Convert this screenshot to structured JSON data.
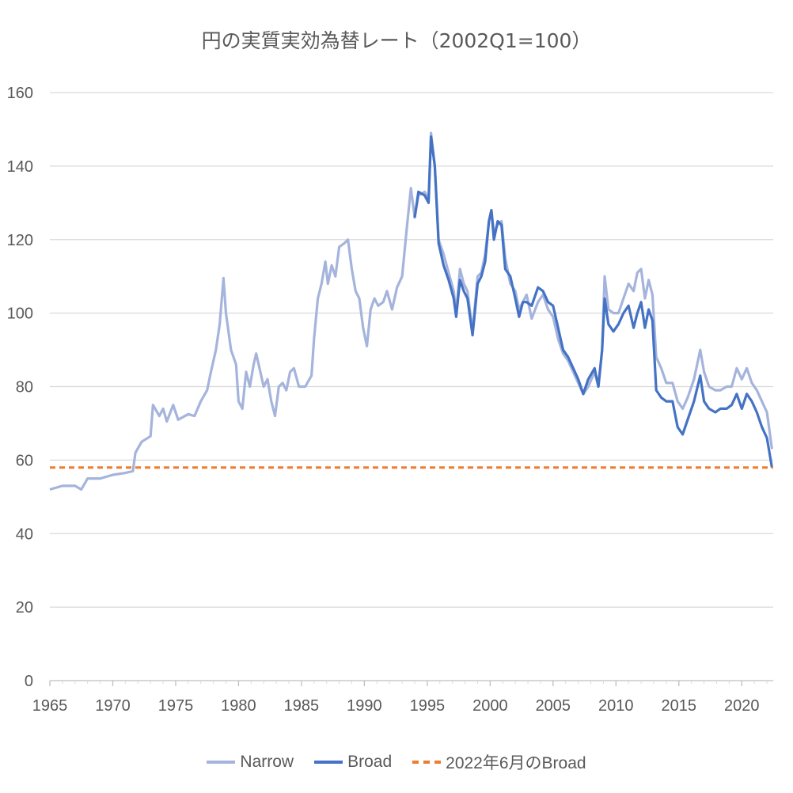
{
  "chart_data": {
    "type": "line",
    "title": "円の実質実効為替レート（2002Q1=100）",
    "xlabel": "",
    "ylabel": "",
    "xlim": [
      1965,
      2022.5
    ],
    "ylim": [
      0,
      160
    ],
    "xticks": [
      "1965",
      "1970",
      "1975",
      "1980",
      "1985",
      "1990",
      "1995",
      "2000",
      "2005",
      "2010",
      "2015",
      "2020"
    ],
    "yticks": [
      "0",
      "20",
      "40",
      "60",
      "80",
      "100",
      "120",
      "140",
      "160"
    ],
    "grid": "horizontal",
    "legend_position": "bottom",
    "series": [
      {
        "name": "Narrow",
        "color": "#a5b4dc",
        "points": [
          [
            1965,
            52
          ],
          [
            1966,
            53
          ],
          [
            1967,
            53
          ],
          [
            1967.5,
            52
          ],
          [
            1968,
            55
          ],
          [
            1969,
            55
          ],
          [
            1970,
            56
          ],
          [
            1971,
            56.5
          ],
          [
            1971.6,
            57
          ],
          [
            1971.8,
            62
          ],
          [
            1972.3,
            65
          ],
          [
            1973,
            66.5
          ],
          [
            1973.2,
            75
          ],
          [
            1973.7,
            72
          ],
          [
            1974,
            74
          ],
          [
            1974.3,
            70.5
          ],
          [
            1974.8,
            75
          ],
          [
            1975.2,
            71
          ],
          [
            1976,
            72.5
          ],
          [
            1976.5,
            72
          ],
          [
            1977,
            76
          ],
          [
            1977.5,
            79
          ],
          [
            1977.8,
            84
          ],
          [
            1978.2,
            90
          ],
          [
            1978.5,
            97
          ],
          [
            1978.8,
            109.5
          ],
          [
            1979,
            100
          ],
          [
            1979.4,
            90
          ],
          [
            1979.8,
            86
          ],
          [
            1980,
            76
          ],
          [
            1980.3,
            74
          ],
          [
            1980.6,
            84
          ],
          [
            1980.9,
            80
          ],
          [
            1981.2,
            86
          ],
          [
            1981.4,
            89
          ],
          [
            1981.8,
            83
          ],
          [
            1982,
            80
          ],
          [
            1982.3,
            82
          ],
          [
            1982.6,
            76
          ],
          [
            1982.9,
            72
          ],
          [
            1983.2,
            80
          ],
          [
            1983.5,
            81
          ],
          [
            1983.8,
            79
          ],
          [
            1984.1,
            84
          ],
          [
            1984.4,
            85
          ],
          [
            1984.8,
            80
          ],
          [
            1985.3,
            80
          ],
          [
            1985.8,
            83
          ],
          [
            1986,
            93
          ],
          [
            1986.3,
            104
          ],
          [
            1986.6,
            108
          ],
          [
            1986.9,
            114
          ],
          [
            1987.1,
            108
          ],
          [
            1987.4,
            113
          ],
          [
            1987.7,
            110
          ],
          [
            1988,
            118
          ],
          [
            1988.4,
            119
          ],
          [
            1988.7,
            120
          ],
          [
            1989,
            112
          ],
          [
            1989.3,
            106
          ],
          [
            1989.6,
            104
          ],
          [
            1989.9,
            96
          ],
          [
            1990.2,
            91
          ],
          [
            1990.5,
            101
          ],
          [
            1990.8,
            104
          ],
          [
            1991.1,
            102
          ],
          [
            1991.5,
            103
          ],
          [
            1991.8,
            106
          ],
          [
            1992.2,
            101
          ],
          [
            1992.6,
            107
          ],
          [
            1993,
            110
          ],
          [
            1993.4,
            124
          ],
          [
            1993.7,
            134
          ],
          [
            1994,
            126
          ],
          [
            1994.3,
            132
          ],
          [
            1994.8,
            133
          ],
          [
            1995.1,
            131
          ],
          [
            1995.3,
            149
          ],
          [
            1995.6,
            140
          ],
          [
            1995.9,
            120
          ],
          [
            1996.3,
            116
          ],
          [
            1996.7,
            111
          ],
          [
            1997.1,
            106
          ],
          [
            1997.3,
            100
          ],
          [
            1997.6,
            112
          ],
          [
            1997.9,
            108
          ],
          [
            1998.2,
            106
          ],
          [
            1998.6,
            95
          ],
          [
            1999,
            110
          ],
          [
            1999.3,
            111
          ],
          [
            1999.6,
            116
          ],
          [
            1999.9,
            125
          ],
          [
            2000.1,
            128
          ],
          [
            2000.3,
            122
          ],
          [
            2000.6,
            124
          ],
          [
            2000.9,
            125
          ],
          [
            2001.2,
            115
          ],
          [
            2001.6,
            108
          ],
          [
            2002,
            106
          ],
          [
            2002.3,
            101
          ],
          [
            2002.6,
            103
          ],
          [
            2002.9,
            105
          ],
          [
            2003.3,
            98.5
          ],
          [
            2003.8,
            103
          ],
          [
            2004.2,
            105
          ],
          [
            2004.6,
            101
          ],
          [
            2005,
            99
          ],
          [
            2005.4,
            93
          ],
          [
            2005.8,
            89
          ],
          [
            2006.2,
            87
          ],
          [
            2006.6,
            84
          ],
          [
            2007,
            81
          ],
          [
            2007.4,
            78
          ],
          [
            2007.8,
            80
          ],
          [
            2008.3,
            84
          ],
          [
            2008.6,
            80
          ],
          [
            2008.9,
            90
          ],
          [
            2009.1,
            110
          ],
          [
            2009.4,
            101
          ],
          [
            2009.8,
            100
          ],
          [
            2010.2,
            100
          ],
          [
            2010.6,
            104
          ],
          [
            2011,
            108
          ],
          [
            2011.4,
            106
          ],
          [
            2011.7,
            111
          ],
          [
            2012,
            112
          ],
          [
            2012.3,
            104
          ],
          [
            2012.6,
            109
          ],
          [
            2012.9,
            105
          ],
          [
            2013.2,
            88
          ],
          [
            2013.6,
            85
          ],
          [
            2014,
            81
          ],
          [
            2014.5,
            81
          ],
          [
            2014.9,
            76
          ],
          [
            2015.3,
            74
          ],
          [
            2015.7,
            77
          ],
          [
            2016.2,
            82
          ],
          [
            2016.7,
            90
          ],
          [
            2017,
            84
          ],
          [
            2017.4,
            80
          ],
          [
            2017.9,
            79
          ],
          [
            2018.3,
            79
          ],
          [
            2018.8,
            80
          ],
          [
            2019.2,
            80
          ],
          [
            2019.6,
            85
          ],
          [
            2020,
            82
          ],
          [
            2020.4,
            85
          ],
          [
            2020.8,
            81
          ],
          [
            2021.2,
            79
          ],
          [
            2021.6,
            76
          ],
          [
            2022,
            73
          ],
          [
            2022.4,
            63
          ]
        ]
      },
      {
        "name": "Broad",
        "color": "#4472c4",
        "points": [
          [
            1994,
            126
          ],
          [
            1994.3,
            133
          ],
          [
            1994.8,
            132
          ],
          [
            1995.1,
            130
          ],
          [
            1995.3,
            148
          ],
          [
            1995.6,
            140
          ],
          [
            1995.9,
            119
          ],
          [
            1996.3,
            113
          ],
          [
            1996.7,
            109
          ],
          [
            1997.1,
            104
          ],
          [
            1997.3,
            99
          ],
          [
            1997.6,
            109
          ],
          [
            1997.9,
            106
          ],
          [
            1998.2,
            104
          ],
          [
            1998.6,
            94
          ],
          [
            1999,
            108
          ],
          [
            1999.3,
            110
          ],
          [
            1999.6,
            114
          ],
          [
            1999.9,
            125
          ],
          [
            2000.1,
            128
          ],
          [
            2000.3,
            120
          ],
          [
            2000.6,
            125
          ],
          [
            2000.9,
            124
          ],
          [
            2001.2,
            112
          ],
          [
            2001.6,
            110
          ],
          [
            2002,
            104
          ],
          [
            2002.3,
            99
          ],
          [
            2002.6,
            103
          ],
          [
            2002.9,
            103
          ],
          [
            2003.3,
            102
          ],
          [
            2003.8,
            107
          ],
          [
            2004.2,
            106
          ],
          [
            2004.6,
            103
          ],
          [
            2005,
            102
          ],
          [
            2005.4,
            96
          ],
          [
            2005.8,
            90
          ],
          [
            2006.2,
            88
          ],
          [
            2006.6,
            85
          ],
          [
            2007,
            82
          ],
          [
            2007.4,
            78
          ],
          [
            2007.8,
            82
          ],
          [
            2008.3,
            85
          ],
          [
            2008.6,
            80
          ],
          [
            2008.9,
            90
          ],
          [
            2009.1,
            104
          ],
          [
            2009.4,
            97
          ],
          [
            2009.8,
            95
          ],
          [
            2010.2,
            97
          ],
          [
            2010.6,
            100
          ],
          [
            2011,
            102
          ],
          [
            2011.4,
            96
          ],
          [
            2011.7,
            100
          ],
          [
            2012,
            103
          ],
          [
            2012.3,
            96
          ],
          [
            2012.6,
            101
          ],
          [
            2012.9,
            98
          ],
          [
            2013.2,
            79
          ],
          [
            2013.6,
            77
          ],
          [
            2014,
            76
          ],
          [
            2014.5,
            76
          ],
          [
            2014.9,
            69
          ],
          [
            2015.3,
            67
          ],
          [
            2015.7,
            71
          ],
          [
            2016.2,
            76
          ],
          [
            2016.7,
            83
          ],
          [
            2017,
            76
          ],
          [
            2017.4,
            74
          ],
          [
            2017.9,
            73
          ],
          [
            2018.3,
            74
          ],
          [
            2018.8,
            74
          ],
          [
            2019.2,
            75
          ],
          [
            2019.6,
            78
          ],
          [
            2020,
            74
          ],
          [
            2020.4,
            78
          ],
          [
            2020.8,
            76
          ],
          [
            2021.2,
            73
          ],
          [
            2021.6,
            69
          ],
          [
            2022,
            66
          ],
          [
            2022.4,
            58
          ]
        ]
      },
      {
        "name": "2022年6月のBroad",
        "color": "#ed7d31",
        "dashed": true,
        "points": [
          [
            1965,
            58
          ],
          [
            2022.5,
            58
          ]
        ]
      }
    ]
  }
}
